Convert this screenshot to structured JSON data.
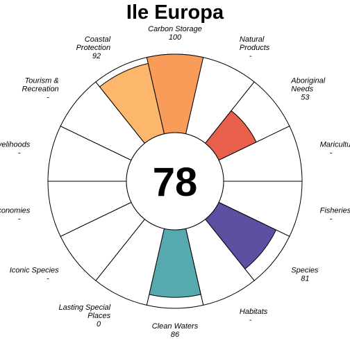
{
  "chart_data": {
    "type": "flower",
    "title": "Ile Europa",
    "center_score": "78",
    "max_value": 100,
    "petals": [
      {
        "label": "Carbon Storage",
        "value": 100,
        "score_text": "100",
        "color": "#F99C5A"
      },
      {
        "label": "Natural Products",
        "value": null,
        "score_text": "-",
        "color": null
      },
      {
        "label": "Aboriginal Needs",
        "value": 53,
        "score_text": "53",
        "color": "#E8604C"
      },
      {
        "label": "Mariculture",
        "value": null,
        "score_text": "-",
        "color": null
      },
      {
        "label": "Fisheries",
        "value": null,
        "score_text": "-",
        "color": null
      },
      {
        "label": "Species",
        "value": 81,
        "score_text": "81",
        "color": "#5E4FA2"
      },
      {
        "label": "Habitats",
        "value": null,
        "score_text": "-",
        "color": null
      },
      {
        "label": "Clean Waters",
        "value": 86,
        "score_text": "86",
        "color": "#56A9AE"
      },
      {
        "label": "Lasting Special Places",
        "value": 0,
        "score_text": "0",
        "color": null
      },
      {
        "label": "Iconic Species",
        "value": null,
        "score_text": "-",
        "color": null
      },
      {
        "label": "Economies",
        "value": null,
        "score_text": "-",
        "color": null
      },
      {
        "label": "Livelihoods",
        "value": null,
        "score_text": "-",
        "color": null
      },
      {
        "label": "Tourism & Recreation",
        "value": null,
        "score_text": "-",
        "color": null
      },
      {
        "label": "Coastal Protection",
        "value": 92,
        "score_text": "92",
        "color": "#FDB76D"
      }
    ]
  }
}
